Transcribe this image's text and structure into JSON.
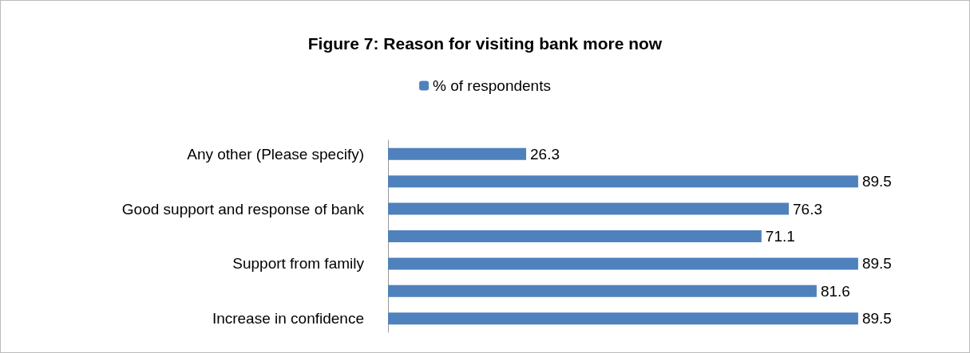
{
  "chart_data": {
    "type": "bar",
    "orientation": "horizontal",
    "title": "Figure 7: Reason for visiting bank more now",
    "categories": [
      "Any other (Please specify)",
      null,
      "Good support and response of bank",
      null,
      "Support from family",
      null,
      "Increase in confidence"
    ],
    "series": [
      {
        "name": "% of respondents",
        "color": "#4f81bd",
        "values": [
          26.3,
          89.5,
          76.3,
          71.1,
          89.5,
          81.6,
          89.5
        ]
      }
    ],
    "data_labels": true,
    "legend": "top"
  }
}
